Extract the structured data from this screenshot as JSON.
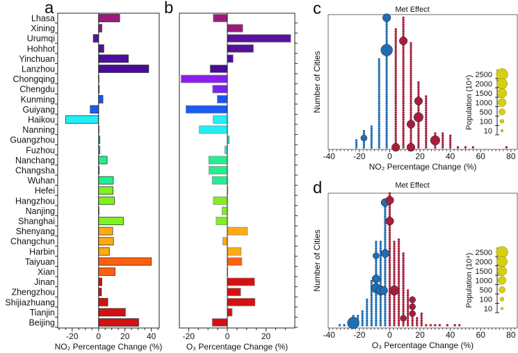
{
  "chart_data": [
    {
      "panel": "a",
      "label": "a",
      "type": "bar",
      "orientation": "horizontal",
      "xlabel": "NO₂ Percentage Change (%)",
      "xlim": [
        -31,
        46
      ],
      "xticks": [
        -20,
        0,
        20,
        40
      ],
      "categories": [
        "Lhasa",
        "Xining",
        "Urumqi",
        "Hohhot",
        "Yinchuan",
        "Lanzhou",
        "Chongqing",
        "Chengdu",
        "Kunming",
        "Guiyang",
        "Haikou",
        "Nanning",
        "Guangzhou",
        "Fuzhou",
        "Nanchang",
        "Changsha",
        "Wuhan",
        "Hefei",
        "Hangzhou",
        "Nanjing",
        "Shanghai",
        "Shenyang",
        "Changchun",
        "Harbin",
        "Taiyuan",
        "Xian",
        "Jinan",
        "Zhengzhou",
        "Shijiazhuang",
        "Tianjin",
        "Beijing"
      ],
      "values": [
        16,
        2.5,
        -4,
        4,
        22.6,
        38,
        0.2,
        0.5,
        3.3,
        -6.3,
        -25,
        0.2,
        1,
        1,
        6.5,
        0.5,
        11.2,
        11,
        12,
        0.3,
        18.8,
        10.7,
        11.3,
        8.2,
        40,
        12.5,
        2.5,
        2.2,
        7,
        20.3,
        30.4
      ],
      "colors": [
        "#9c1a7c",
        "#9c1a7c",
        "#5a10a0",
        "#55109a",
        "#4e0ea0",
        "#4a0a9a",
        "#8a1ef0",
        "#7a22f0",
        "#1a55f0",
        "#1a5cf5",
        "#1ef0f5",
        "#1ef0f5",
        "#20e0d0",
        "#30e8d8",
        "#20f090",
        "#20f090",
        "#20f090",
        "#80f020",
        "#80f020",
        "#80f020",
        "#80f020",
        "#ffaa10",
        "#ffaa10",
        "#ffaa10",
        "#ff6010",
        "#ff6010",
        "#d41010",
        "#d41010",
        "#d41010",
        "#d41010",
        "#d41010"
      ]
    },
    {
      "panel": "b",
      "label": "b",
      "type": "bar",
      "orientation": "horizontal",
      "xlabel": "O₃ Percentage Change (%)",
      "xlim": [
        -24.8,
        34.9
      ],
      "xticks": [
        -20,
        0,
        20
      ],
      "values": [
        -7.3,
        8,
        32.8,
        13.5,
        3,
        -8.9,
        -23.9,
        -7.6,
        -5.2,
        -21.4,
        -7.3,
        -14.5,
        1,
        -1.3,
        -9.6,
        -9.5,
        -7.8,
        0,
        -7.2,
        -2.7,
        -5.8,
        10.4,
        -2.3,
        7.1,
        7.5,
        0,
        14.1,
        6.9,
        14.3,
        2.5,
        -7.8
      ]
    },
    {
      "panel": "c",
      "label": "c",
      "type": "scatter",
      "title": "Met Effect",
      "xlabel": "NO₂ Percentage Change (%)",
      "ylabel": "Number of Cities",
      "xlim": [
        -40.6,
        84.2
      ],
      "xticks": [
        -40,
        -20,
        0,
        20,
        40,
        60,
        80
      ],
      "columns": [
        {
          "x": -22,
          "count": 4
        },
        {
          "x": -17,
          "count": 8
        },
        {
          "x": -12,
          "count": 10
        },
        {
          "x": -7,
          "count": 39
        },
        {
          "x": -2,
          "count": 57
        },
        {
          "x": 4,
          "count": 52
        },
        {
          "x": 9,
          "count": 57
        },
        {
          "x": 14,
          "count": 46
        },
        {
          "x": 19,
          "count": 29
        },
        {
          "x": 24,
          "count": 23
        },
        {
          "x": 30,
          "count": 7
        },
        {
          "x": 35,
          "count": 7
        },
        {
          "x": 40,
          "count": 6
        },
        {
          "x": 45,
          "count": 1
        },
        {
          "x": 50,
          "count": 1
        },
        {
          "x": 55,
          "count": 1
        },
        {
          "x": 77,
          "count": 1
        }
      ],
      "large_points": [
        {
          "x": -2,
          "level": 42,
          "population": 2500
        },
        {
          "x": -2,
          "level": 56,
          "population": 1000
        },
        {
          "x": 9,
          "level": 46,
          "population": 1000
        },
        {
          "x": 19,
          "level": 20,
          "population": 1000
        },
        {
          "x": 19,
          "level": 13,
          "population": 1500
        },
        {
          "x": 14,
          "level": 10,
          "population": 1000
        },
        {
          "x": 30,
          "level": 3,
          "population": 1500
        },
        {
          "x": 4,
          "level": 0,
          "population": 1000
        },
        {
          "x": 14,
          "level": 0,
          "population": 1000
        },
        {
          "x": -17,
          "level": 4,
          "population": 500
        }
      ],
      "negative_color": "#1f6db3",
      "positive_color": "#a41f3d",
      "legend": {
        "title": "Population (10⁴)",
        "values": [
          2500,
          2000,
          1500,
          1000,
          500,
          100,
          10
        ],
        "color": "#d6cf14"
      }
    },
    {
      "panel": "d",
      "label": "d",
      "type": "scatter",
      "title": "Met Effect",
      "xlabel": "O₃ Percentage Change (%)",
      "ylabel": "Number of Cities",
      "xlim": [
        -40.6,
        84.2
      ],
      "xticks": [
        -40,
        -20,
        0,
        20,
        40,
        60,
        80
      ],
      "columns": [
        {
          "x": -33,
          "count": 1
        },
        {
          "x": -30,
          "count": 1
        },
        {
          "x": -27,
          "count": 2
        },
        {
          "x": -24,
          "count": 5
        },
        {
          "x": -21,
          "count": 5
        },
        {
          "x": -18,
          "count": 7
        },
        {
          "x": -15,
          "count": 12
        },
        {
          "x": -12,
          "count": 20
        },
        {
          "x": -9,
          "count": 37
        },
        {
          "x": -6,
          "count": 37
        },
        {
          "x": -3,
          "count": 55
        },
        {
          "x": 0,
          "count": 58
        },
        {
          "x": 3,
          "count": 37
        },
        {
          "x": 6,
          "count": 38
        },
        {
          "x": 9,
          "count": 32
        },
        {
          "x": 12,
          "count": 16
        },
        {
          "x": 15,
          "count": 13
        },
        {
          "x": 18,
          "count": 4
        },
        {
          "x": 21,
          "count": 6
        },
        {
          "x": 24,
          "count": 1
        },
        {
          "x": 27,
          "count": 1
        },
        {
          "x": 30,
          "count": 1
        },
        {
          "x": 33,
          "count": 1
        },
        {
          "x": 38,
          "count": 1
        },
        {
          "x": 43,
          "count": 1
        },
        {
          "x": 46,
          "count": 1
        }
      ],
      "large_points": [
        {
          "x": -24,
          "level": 1,
          "population": 2500
        },
        {
          "x": -9,
          "level": 16,
          "population": 1500
        },
        {
          "x": -6,
          "level": 15,
          "population": 1500
        },
        {
          "x": -4,
          "level": 15,
          "population": 1000
        },
        {
          "x": -9,
          "level": 20,
          "population": 1000
        },
        {
          "x": -9,
          "level": 30,
          "population": 500
        },
        {
          "x": -3,
          "level": 31,
          "population": 1000
        },
        {
          "x": -3,
          "level": 53,
          "population": 1000
        },
        {
          "x": 0,
          "level": 54,
          "population": 1000
        },
        {
          "x": 0,
          "level": 45,
          "population": 1000
        },
        {
          "x": 3,
          "level": 15,
          "population": 1500
        },
        {
          "x": 15,
          "level": 11,
          "population": 500
        },
        {
          "x": 15,
          "level": 8,
          "population": 500
        },
        {
          "x": 15,
          "level": 5,
          "population": 500
        },
        {
          "x": 9,
          "level": 3,
          "population": 500
        }
      ],
      "negative_color": "#1f6db3",
      "positive_color": "#a41f3d",
      "legend": {
        "title": "Population (10⁴)",
        "values": [
          2500,
          2000,
          1500,
          1000,
          500,
          100,
          10
        ],
        "color": "#d6cf14"
      }
    }
  ]
}
